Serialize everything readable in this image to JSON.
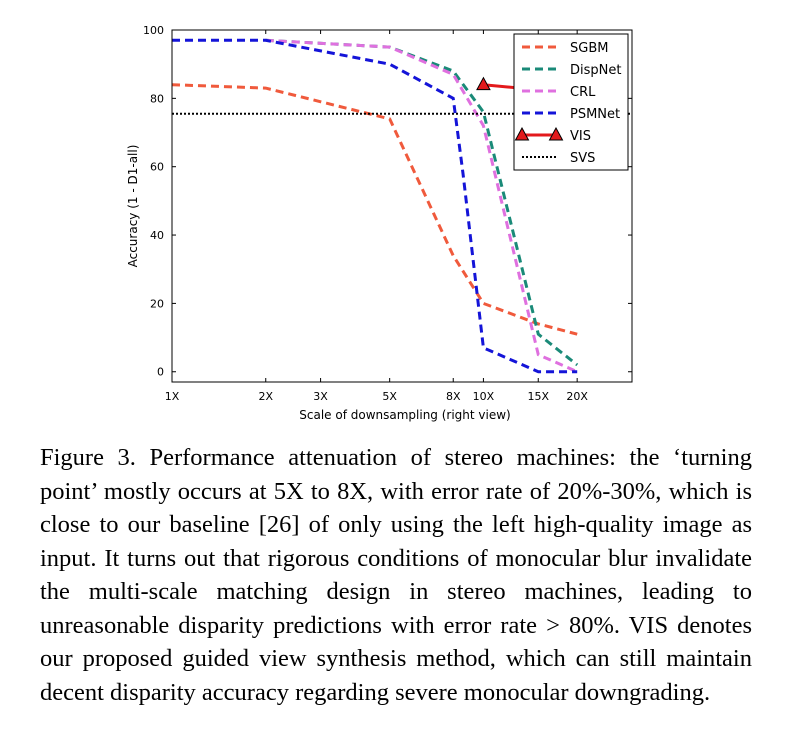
{
  "chart_data": {
    "type": "line",
    "xscale": "log",
    "xlabel": "Scale of downsampling (right view)",
    "ylabel": "Accuracy (1 - D1-all)",
    "xticks": [
      1,
      2,
      3,
      5,
      8,
      10,
      15,
      20
    ],
    "xtick_labels": [
      "1X",
      "2X",
      "3X",
      "5X",
      "8X",
      "10X",
      "15X",
      "20X"
    ],
    "yticks": [
      0,
      20,
      40,
      60,
      80,
      100
    ],
    "xlim": [
      1,
      30
    ],
    "ylim": [
      -3,
      100
    ],
    "legend_position": "top-right",
    "series": [
      {
        "name": "SGBM",
        "color": "#f05a3c",
        "style": "dashed",
        "x": [
          1,
          2,
          5,
          8,
          10,
          15,
          20
        ],
        "y": [
          84,
          83,
          74,
          34,
          20,
          14,
          11
        ]
      },
      {
        "name": "DispNet",
        "color": "#1a8a78",
        "style": "dashed",
        "x": [
          2,
          5,
          8,
          10,
          15,
          20
        ],
        "y": [
          97,
          95,
          88,
          76,
          11,
          2
        ]
      },
      {
        "name": "CRL",
        "color": "#df70df",
        "style": "dashed",
        "x": [
          2,
          5,
          8,
          10,
          15,
          20
        ],
        "y": [
          97,
          95,
          87,
          72,
          5,
          0
        ]
      },
      {
        "name": "PSMNet",
        "color": "#1414d8",
        "style": "dashed",
        "x": [
          1,
          2,
          5,
          8,
          8.6,
          10,
          15,
          20
        ],
        "y": [
          97,
          97,
          90,
          80,
          58,
          7,
          0,
          0
        ]
      },
      {
        "name": "VIS",
        "color": "#e31a1c",
        "style": "solid-triangle",
        "x": [
          10,
          15,
          20
        ],
        "y": [
          84,
          82.5,
          79.5
        ]
      },
      {
        "name": "SVS",
        "color": "#000000",
        "style": "dotted",
        "x": [
          1,
          30
        ],
        "y": [
          75.5,
          75.5
        ]
      }
    ]
  },
  "caption": "Figure 3. Performance attenuation of stereo machines: the ‘turning point’ mostly occurs at 5X to 8X, with error rate of 20%-30%, which is close to our baseline [26] of only using the left high-quality image as input. It turns out that rigorous conditions of monocular blur invalidate the multi-scale matching design in stereo machines, leading to unreasonable disparity predictions with error rate > 80%. VIS denotes our proposed guided view synthesis method, which can still maintain decent disparity accuracy regarding severe monocular downgrading."
}
